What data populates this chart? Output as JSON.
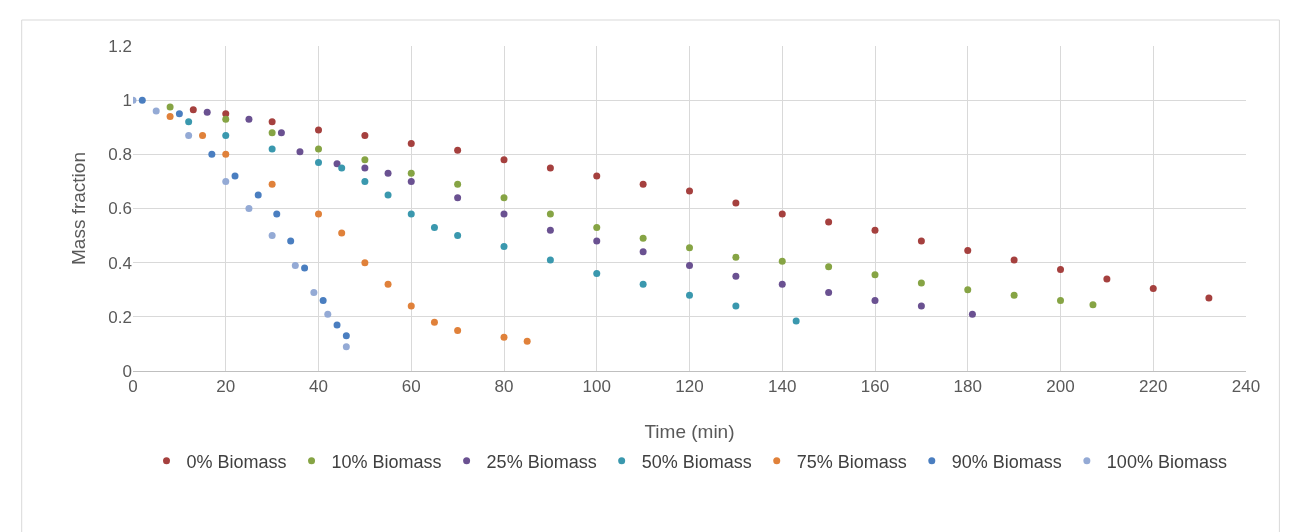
{
  "chart_data": {
    "type": "scatter",
    "xlabel": "Time (min)",
    "ylabel": "Mass fraction",
    "xlim": [
      0,
      240
    ],
    "xticks": [
      0,
      20,
      40,
      60,
      80,
      100,
      120,
      140,
      160,
      180,
      200,
      220,
      240
    ],
    "ylim": [
      0,
      1.2
    ],
    "yticks": [
      0,
      0.2,
      0.4,
      0.6,
      0.8,
      1,
      1.2
    ],
    "grid": true,
    "legend": "bottom",
    "marker": "circle",
    "series": [
      {
        "name": "0% Biomass",
        "color": "#a5403e",
        "x": [
          13,
          20,
          30,
          40,
          50,
          60,
          70,
          80,
          90,
          100,
          110,
          120,
          130,
          140,
          150,
          160,
          170,
          180,
          190,
          200,
          210,
          220,
          232
        ],
        "values": [
          0.965,
          0.95,
          0.92,
          0.89,
          0.87,
          0.84,
          0.815,
          0.78,
          0.75,
          0.72,
          0.69,
          0.665,
          0.62,
          0.58,
          0.55,
          0.52,
          0.48,
          0.445,
          0.41,
          0.375,
          0.34,
          0.305,
          0.27
        ]
      },
      {
        "name": "10% Biomass",
        "color": "#86a444",
        "x": [
          8,
          20,
          30,
          40,
          50,
          60,
          70,
          80,
          90,
          100,
          110,
          120,
          130,
          140,
          150,
          160,
          170,
          180,
          190,
          200,
          207
        ],
        "values": [
          0.975,
          0.93,
          0.88,
          0.82,
          0.78,
          0.73,
          0.69,
          0.64,
          0.58,
          0.53,
          0.49,
          0.455,
          0.42,
          0.405,
          0.385,
          0.355,
          0.325,
          0.3,
          0.28,
          0.26,
          0.245
        ]
      },
      {
        "name": "25% Biomass",
        "color": "#6a5191",
        "x": [
          16,
          25,
          32,
          36,
          44,
          50,
          55,
          60,
          70,
          80,
          90,
          100,
          110,
          120,
          130,
          140,
          150,
          160,
          170,
          181
        ],
        "values": [
          0.955,
          0.93,
          0.88,
          0.81,
          0.765,
          0.75,
          0.73,
          0.7,
          0.64,
          0.58,
          0.52,
          0.48,
          0.44,
          0.39,
          0.35,
          0.32,
          0.29,
          0.26,
          0.24,
          0.21
        ]
      },
      {
        "name": "50% Biomass",
        "color": "#3a98ae",
        "x": [
          12,
          20,
          30,
          40,
          45,
          50,
          55,
          60,
          65,
          70,
          80,
          90,
          100,
          110,
          120,
          130,
          143
        ],
        "values": [
          0.92,
          0.87,
          0.82,
          0.77,
          0.75,
          0.7,
          0.65,
          0.58,
          0.53,
          0.5,
          0.46,
          0.41,
          0.36,
          0.32,
          0.28,
          0.24,
          0.185
        ]
      },
      {
        "name": "75% Biomass",
        "color": "#e0813a",
        "x": [
          8,
          15,
          20,
          30,
          40,
          45,
          50,
          55,
          60,
          65,
          70,
          80,
          85
        ],
        "values": [
          0.94,
          0.87,
          0.8,
          0.69,
          0.58,
          0.51,
          0.4,
          0.32,
          0.24,
          0.18,
          0.15,
          0.125,
          0.11
        ]
      },
      {
        "name": "90% Biomass",
        "color": "#4a7ec0",
        "x": [
          2,
          10,
          17,
          22,
          27,
          31,
          34,
          37,
          41,
          44,
          46
        ],
        "values": [
          1,
          0.95,
          0.8,
          0.72,
          0.65,
          0.58,
          0.48,
          0.38,
          0.26,
          0.17,
          0.13
        ]
      },
      {
        "name": "100% Biomass",
        "color": "#94aad5",
        "x": [
          0,
          5,
          12,
          20,
          25,
          30,
          35,
          39,
          42,
          46
        ],
        "values": [
          1,
          0.96,
          0.87,
          0.7,
          0.6,
          0.5,
          0.39,
          0.29,
          0.21,
          0.09
        ]
      }
    ]
  }
}
